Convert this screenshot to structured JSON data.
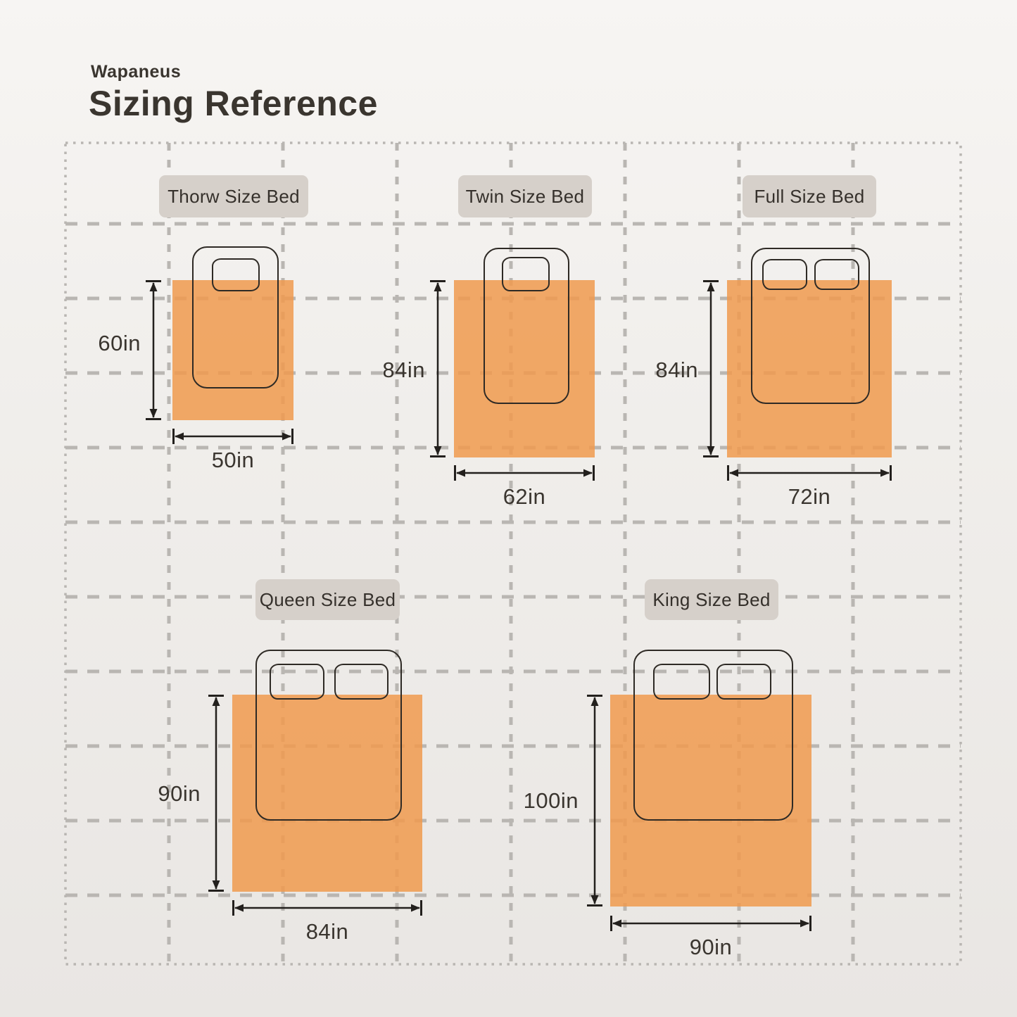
{
  "header": {
    "brand": "Wapaneus",
    "title": "Sizing Reference"
  },
  "beds": [
    {
      "name": "Thorw Size Bed",
      "height": "60in",
      "width": "50in",
      "pillows": 1
    },
    {
      "name": "Twin Size Bed",
      "height": "84in",
      "width": "62in",
      "pillows": 1
    },
    {
      "name": "Full Size Bed",
      "height": "84in",
      "width": "72in",
      "pillows": 2
    },
    {
      "name": "Queen Size Bed",
      "height": "90in",
      "width": "84in",
      "pillows": 2
    },
    {
      "name": "King Size Bed",
      "height": "100in",
      "width": "90in",
      "pillows": 2
    }
  ],
  "colors": {
    "blanket": "#F09A4E",
    "label_bg": "#D6D0CA",
    "grid": "#B9B6B2",
    "text": "#3A352F",
    "line_art": "#2E2A25"
  }
}
